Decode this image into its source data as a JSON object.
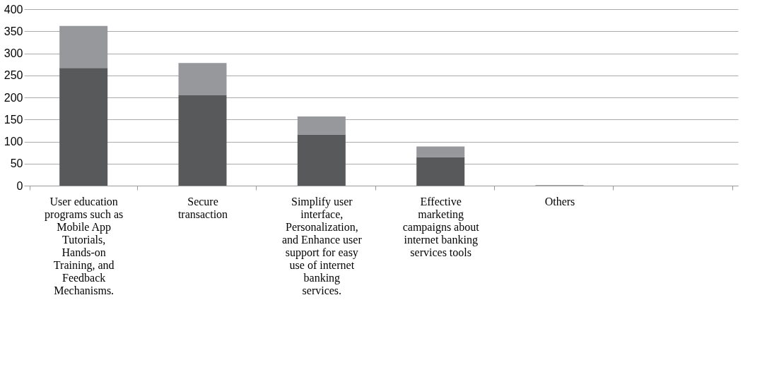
{
  "chart_data": {
    "type": "bar",
    "stacked": true,
    "categories": [
      "User education programs such as Mobile App Tutorials, Hands-on Training, and Feedback Mechanisms.",
      "Secure transaction",
      "Simplify user interface, Personalization, and Enhance user support for easy use of internet banking services.",
      "Effective marketing campaigns about internet banking services tools",
      "Others",
      null
    ],
    "series": [
      {
        "color": "#58595b",
        "values": [
          267,
          205,
          116,
          65,
          1,
          null
        ]
      },
      {
        "color": "#97989c",
        "values": [
          95,
          73,
          41,
          24,
          0,
          null
        ]
      }
    ],
    "ylim": [
      0,
      400
    ],
    "yticks": [
      0,
      50,
      100,
      150,
      200,
      250,
      300,
      350,
      400
    ],
    "grid": "y",
    "legend": false
  }
}
